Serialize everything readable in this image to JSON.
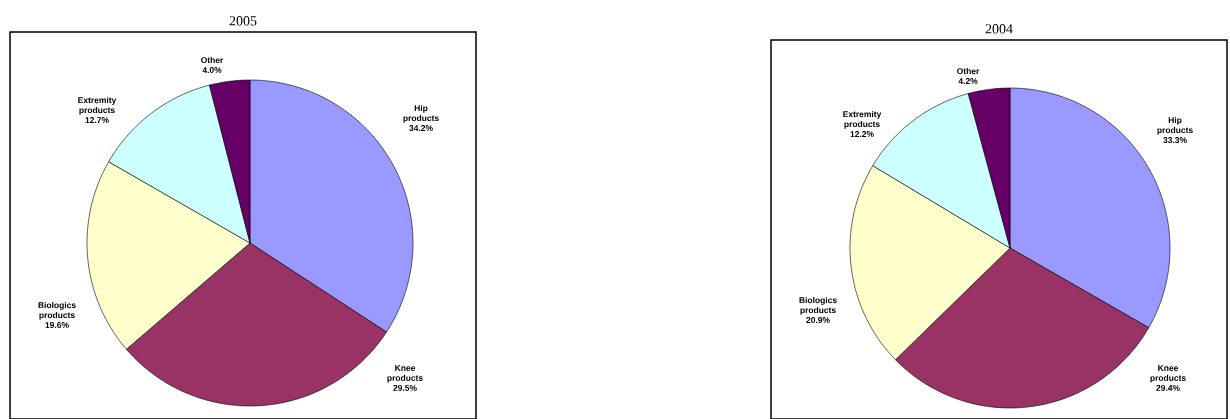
{
  "chart_data": [
    {
      "type": "pie",
      "title": "2005",
      "categories": [
        "Hip products",
        "Knee products",
        "Biologics products",
        "Extremity products",
        "Other"
      ],
      "values": [
        34.2,
        29.5,
        19.6,
        12.7,
        4.0
      ],
      "colors": [
        "#9999ff",
        "#993366",
        "#ffffcc",
        "#ccffff",
        "#660066"
      ],
      "value_labels": [
        "34.2%",
        "29.5%",
        "19.6%",
        "12.7%",
        "4.0%"
      ]
    },
    {
      "type": "pie",
      "title": "2004",
      "categories": [
        "Hip products",
        "Knee products",
        "Biologics products",
        "Extremity products",
        "Other"
      ],
      "values": [
        33.3,
        29.4,
        20.9,
        12.2,
        4.2
      ],
      "colors": [
        "#9999ff",
        "#993366",
        "#ffffcc",
        "#ccffff",
        "#660066"
      ],
      "value_labels": [
        "33.3%",
        "29.4%",
        "20.9%",
        "12.2%",
        "4.2%"
      ]
    }
  ]
}
